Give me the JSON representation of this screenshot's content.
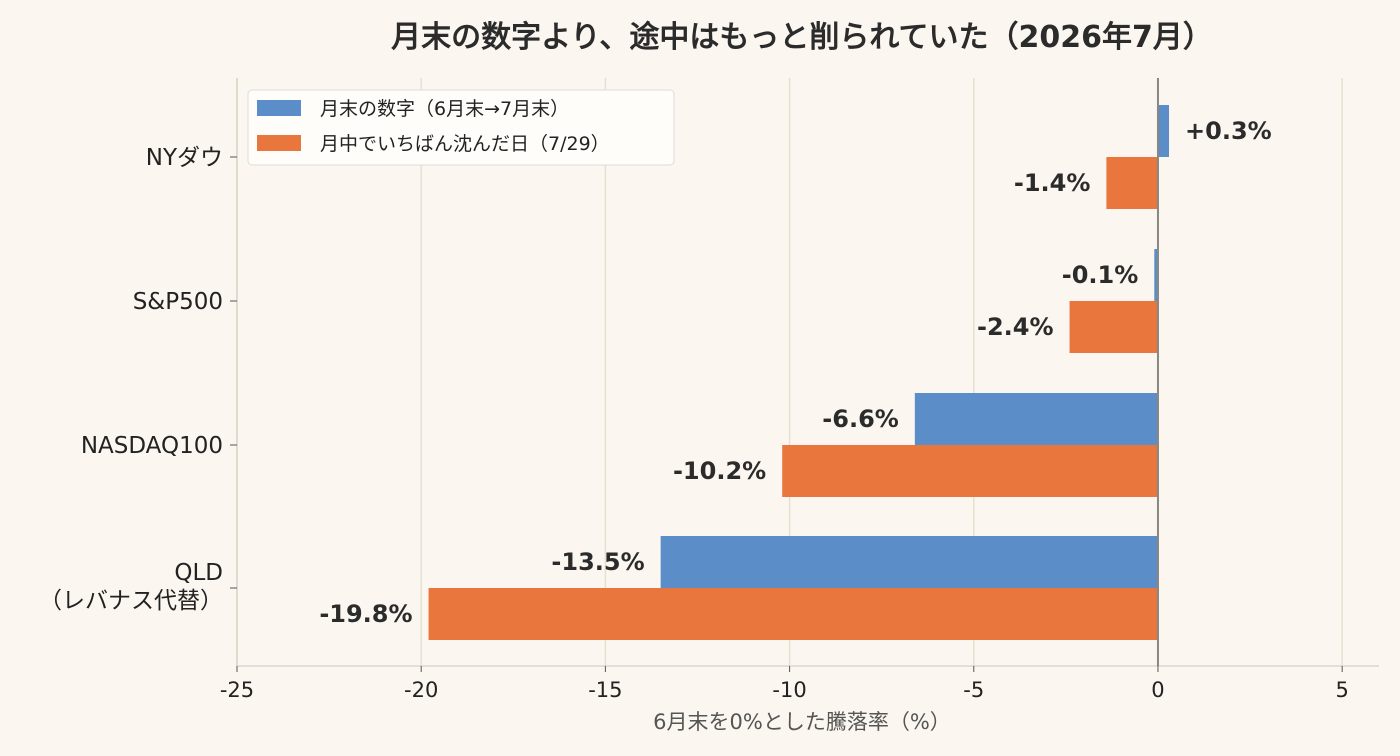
{
  "chart_data": {
    "type": "bar",
    "orientation": "horizontal",
    "title": "月末の数字より、途中はもっと削られていた（2026年7月）",
    "xlabel": "6月末を0%とした騰落率（%）",
    "ylabel": "",
    "xlim": [
      -25,
      6
    ],
    "xticks": [
      -25,
      -20,
      -15,
      -10,
      -5,
      0,
      5
    ],
    "xtick_labels": [
      "-25",
      "-20",
      "-15",
      "-10",
      "-5",
      "0",
      "5"
    ],
    "grid": "vertical",
    "legend_position": "top-left",
    "categories": [
      {
        "lines": [
          "NYダウ"
        ]
      },
      {
        "lines": [
          "S&P500"
        ]
      },
      {
        "lines": [
          "NASDAQ100"
        ]
      },
      {
        "lines": [
          "QLD",
          "（レバナス代替）"
        ]
      }
    ],
    "series": [
      {
        "name": "月末の数字（6月末→7月末）",
        "color": "#5b8ec9",
        "values": [
          0.3,
          -0.1,
          -6.6,
          -13.5
        ],
        "labels": [
          "+0.3%",
          "-0.1%",
          "-6.6%",
          "-13.5%"
        ]
      },
      {
        "name": "月中でいちばん沈んだ日（7/29）",
        "color": "#e8763d",
        "values": [
          -1.4,
          -2.4,
          -10.2,
          -19.8
        ],
        "labels": [
          "-1.4%",
          "-2.4%",
          "-10.2%",
          "-19.8%"
        ]
      }
    ]
  }
}
